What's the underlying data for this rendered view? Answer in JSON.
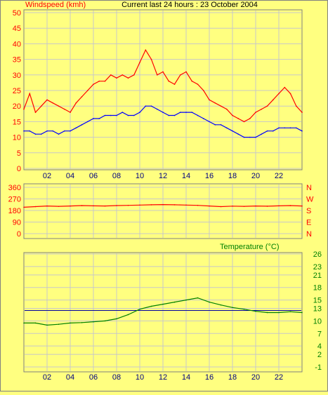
{
  "colors": {
    "background": "#ffff80",
    "grid": "#c8c8c8",
    "gust": "#ff0000",
    "avg": "#0000ff",
    "direction": "#ff0000",
    "temperature": "#008000",
    "reference_line": "#0000a0",
    "axis_text": "#ff0000",
    "temp_text": "#008000"
  },
  "x_ticks": [
    "02",
    "04",
    "06",
    "08",
    "10",
    "12",
    "14",
    "16",
    "18",
    "20",
    "22"
  ],
  "chart_data": [
    {
      "type": "line",
      "title": "Current last 24 hours : 23 October 2004",
      "ylabel": "Windspeed (kmh)",
      "x_range": [
        0,
        24
      ],
      "ylim": [
        0,
        50
      ],
      "y_ticks": [
        0,
        5,
        10,
        15,
        20,
        25,
        30,
        35,
        40,
        45,
        50
      ],
      "grid": true,
      "series": [
        {
          "name": "",
          "x": [
            0,
            0.5,
            1,
            1.5,
            2,
            2.5,
            3,
            3.5,
            4,
            4.5,
            5,
            5.5,
            6,
            6.5,
            7,
            7.5,
            8,
            8.5,
            9,
            9.5,
            10,
            10.5,
            11,
            11.5,
            12,
            12.5,
            13,
            13.5,
            14,
            14.5,
            15,
            15.5,
            16,
            16.5,
            17,
            17.5,
            18,
            18.5,
            19,
            19.5,
            20,
            20.5,
            21,
            21.5,
            22,
            22.5,
            23,
            23.5,
            24
          ],
          "values": [
            19,
            24,
            18,
            20,
            22,
            21,
            20,
            19,
            18,
            21,
            23,
            25,
            27,
            28,
            28,
            30,
            29,
            30,
            29,
            30,
            34,
            38,
            35,
            30,
            31,
            28,
            27,
            30,
            31,
            28,
            27,
            25,
            22,
            21,
            20,
            19,
            17,
            16,
            15,
            16,
            18,
            19,
            20,
            22,
            24,
            26,
            24,
            20,
            18
          ]
        },
        {
          "name": "",
          "x": [
            0,
            0.5,
            1,
            1.5,
            2,
            2.5,
            3,
            3.5,
            4,
            4.5,
            5,
            5.5,
            6,
            6.5,
            7,
            7.5,
            8,
            8.5,
            9,
            9.5,
            10,
            10.5,
            11,
            11.5,
            12,
            12.5,
            13,
            13.5,
            14,
            14.5,
            15,
            15.5,
            16,
            16.5,
            17,
            17.5,
            18,
            18.5,
            19,
            19.5,
            20,
            20.5,
            21,
            21.5,
            22,
            22.5,
            23,
            23.5,
            24
          ],
          "values": [
            12,
            12,
            11,
            11,
            12,
            12,
            11,
            12,
            12,
            13,
            14,
            15,
            16,
            16,
            17,
            17,
            17,
            18,
            17,
            17,
            18,
            20,
            20,
            19,
            18,
            17,
            17,
            18,
            18,
            18,
            17,
            16,
            15,
            14,
            14,
            13,
            12,
            11,
            10,
            10,
            10,
            11,
            12,
            12,
            13,
            13,
            13,
            13,
            12
          ]
        }
      ]
    },
    {
      "type": "line",
      "x_range": [
        0,
        24
      ],
      "ylim": [
        0,
        360
      ],
      "y_ticks": [
        0,
        90,
        180,
        270,
        360
      ],
      "right_labels": [
        "N",
        "W",
        "S",
        "E",
        "N"
      ],
      "grid": true,
      "series": [
        {
          "name": "",
          "x": [
            0,
            1,
            2,
            3,
            4,
            5,
            6,
            7,
            8,
            9,
            10,
            11,
            12,
            13,
            14,
            15,
            16,
            17,
            18,
            19,
            20,
            21,
            22,
            23,
            24
          ],
          "values": [
            205,
            210,
            215,
            212,
            215,
            218,
            216,
            215,
            218,
            220,
            222,
            224,
            226,
            224,
            222,
            220,
            215,
            210,
            214,
            212,
            215,
            213,
            216,
            218,
            215
          ]
        }
      ]
    },
    {
      "type": "line",
      "title": "Temperature (°C)",
      "x_range": [
        0,
        24
      ],
      "ylim": [
        -1,
        26
      ],
      "y_ticks": [
        -1,
        2,
        4,
        7,
        10,
        13,
        15,
        18,
        21,
        23,
        26
      ],
      "grid": true,
      "reference_line": 12.5,
      "series": [
        {
          "name": "",
          "x": [
            0,
            1,
            2,
            3,
            4,
            5,
            6,
            7,
            8,
            9,
            10,
            11,
            12,
            13,
            14,
            15,
            16,
            17,
            18,
            19,
            20,
            21,
            22,
            23,
            24
          ],
          "values": [
            9.5,
            9.5,
            9.0,
            9.2,
            9.5,
            9.6,
            9.8,
            10.0,
            10.5,
            11.5,
            12.8,
            13.5,
            14.0,
            14.5,
            15.0,
            15.5,
            14.5,
            13.8,
            13.2,
            12.8,
            12.3,
            12.0,
            12.0,
            12.2,
            12.0
          ]
        }
      ]
    }
  ]
}
